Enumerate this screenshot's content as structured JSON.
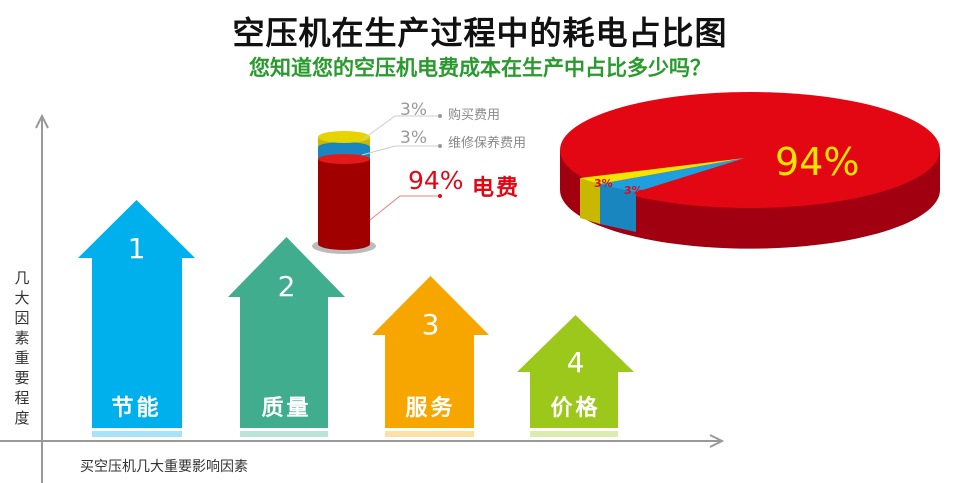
{
  "title": "空压机在生产过程中的耗电占比图",
  "subtitle": "您知道您的空压机电费成本在生产中占比多少吗？",
  "y_axis_label": "几大因素重要程度",
  "x_axis_label": "买空压机几大重要影响因素",
  "factors": [
    {
      "rank": "1",
      "label": "节能",
      "color": "#00b0ec"
    },
    {
      "rank": "2",
      "label": "质量",
      "color": "#40ae8e"
    },
    {
      "rank": "3",
      "label": "服务",
      "color": "#f7a600"
    },
    {
      "rank": "4",
      "label": "价格",
      "color": "#9cc81c"
    }
  ],
  "chart_data": {
    "type": "pie",
    "slices": [
      {
        "name": "电费",
        "value": 94,
        "label": "94%",
        "color": "#e30613"
      },
      {
        "name": "维修保养费用",
        "value": 3,
        "label": "3%",
        "color": "#1ea0e0"
      },
      {
        "name": "购买费用",
        "value": 3,
        "label": "3%",
        "color": "#f5e400"
      }
    ],
    "legend": [
      {
        "percent": "3%",
        "name": "购买费用"
      },
      {
        "percent": "3%",
        "name": "维修保养费用"
      },
      {
        "percent": "94%",
        "name": "电费"
      }
    ]
  }
}
